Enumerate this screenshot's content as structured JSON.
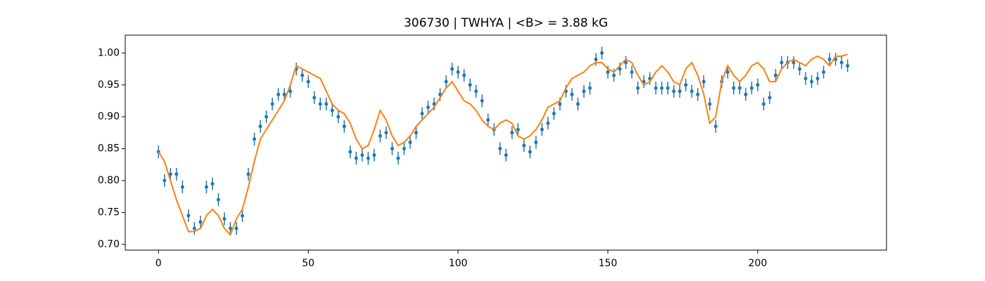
{
  "chart_data": {
    "type": "errorbar",
    "title": "306730 | TWHYA | <B> = 3.88 kG",
    "x": [
      0,
      2,
      4,
      6,
      8,
      10,
      12,
      14,
      16,
      18,
      20,
      22,
      24,
      26,
      28,
      30,
      32,
      34,
      36,
      38,
      40,
      42,
      44,
      46,
      48,
      50,
      52,
      54,
      56,
      58,
      60,
      62,
      64,
      66,
      68,
      70,
      72,
      74,
      76,
      78,
      80,
      82,
      84,
      86,
      88,
      90,
      92,
      94,
      96,
      98,
      100,
      102,
      104,
      106,
      108,
      110,
      112,
      114,
      116,
      118,
      120,
      122,
      124,
      126,
      128,
      130,
      132,
      134,
      136,
      138,
      140,
      142,
      144,
      146,
      148,
      150,
      152,
      154,
      156,
      158,
      160,
      162,
      164,
      166,
      168,
      170,
      172,
      174,
      176,
      178,
      180,
      182,
      184,
      186,
      188,
      190,
      192,
      194,
      196,
      198,
      200,
      202,
      204,
      206,
      208,
      210,
      212,
      214,
      216,
      218,
      220,
      222,
      224,
      226,
      228,
      230
    ],
    "series": [
      {
        "color": "#1f77b4",
        "yerr": 0.01,
        "values": [
          0.845,
          0.8,
          0.81,
          0.81,
          0.79,
          0.745,
          0.725,
          0.735,
          0.79,
          0.795,
          0.77,
          0.74,
          0.725,
          0.725,
          0.745,
          0.81,
          0.865,
          0.885,
          0.9,
          0.92,
          0.935,
          0.935,
          0.94,
          0.975,
          0.965,
          0.955,
          0.93,
          0.92,
          0.92,
          0.91,
          0.9,
          0.885,
          0.845,
          0.835,
          0.84,
          0.835,
          0.84,
          0.87,
          0.875,
          0.85,
          0.835,
          0.85,
          0.86,
          0.875,
          0.905,
          0.915,
          0.92,
          0.935,
          0.955,
          0.975,
          0.97,
          0.965,
          0.95,
          0.94,
          0.925,
          0.895,
          0.88,
          0.85,
          0.84,
          0.875,
          0.88,
          0.855,
          0.845,
          0.86,
          0.88,
          0.89,
          0.905,
          0.92,
          0.94,
          0.935,
          0.92,
          0.94,
          0.945,
          0.99,
          1.0,
          0.97,
          0.965,
          0.975,
          0.985,
          0.97,
          0.945,
          0.955,
          0.96,
          0.945,
          0.945,
          0.945,
          0.94,
          0.94,
          0.95,
          0.94,
          0.935,
          0.955,
          0.92,
          0.885,
          0.955,
          0.97,
          0.945,
          0.945,
          0.935,
          0.945,
          0.95,
          0.92,
          0.93,
          0.965,
          0.985,
          0.985,
          0.985,
          0.975,
          0.96,
          0.955,
          0.96,
          0.97,
          0.99,
          0.99,
          0.985,
          0.98
        ]
      },
      {
        "color": "#ff7f0e",
        "values": [
          0.845,
          0.83,
          0.8,
          0.77,
          0.745,
          0.72,
          0.72,
          0.725,
          0.745,
          0.755,
          0.745,
          0.725,
          0.715,
          0.74,
          0.755,
          0.79,
          0.83,
          0.865,
          0.88,
          0.895,
          0.91,
          0.925,
          0.95,
          0.98,
          0.975,
          0.97,
          0.965,
          0.96,
          0.94,
          0.92,
          0.91,
          0.905,
          0.89,
          0.865,
          0.85,
          0.855,
          0.88,
          0.91,
          0.895,
          0.87,
          0.855,
          0.86,
          0.87,
          0.885,
          0.895,
          0.905,
          0.915,
          0.93,
          0.945,
          0.955,
          0.94,
          0.925,
          0.92,
          0.91,
          0.895,
          0.885,
          0.88,
          0.89,
          0.895,
          0.89,
          0.87,
          0.865,
          0.87,
          0.88,
          0.895,
          0.915,
          0.92,
          0.925,
          0.945,
          0.96,
          0.965,
          0.97,
          0.98,
          0.985,
          0.985,
          0.975,
          0.97,
          0.98,
          0.99,
          0.985,
          0.965,
          0.95,
          0.955,
          0.97,
          0.98,
          0.97,
          0.955,
          0.95,
          0.975,
          0.985,
          0.965,
          0.935,
          0.89,
          0.9,
          0.955,
          0.98,
          0.965,
          0.955,
          0.965,
          0.98,
          0.985,
          0.975,
          0.955,
          0.955,
          0.975,
          0.985,
          0.99,
          0.985,
          0.98,
          0.99,
          0.995,
          0.99,
          0.98,
          0.995,
          0.995,
          0.998
        ]
      }
    ],
    "xlim": [
      -11.1,
      243
    ],
    "ylim": [
      0.691,
      1.028
    ],
    "xticks": [
      0,
      50,
      100,
      150,
      200
    ],
    "yticks": [
      {
        "value": 0.7,
        "label": "0.70"
      },
      {
        "value": 0.75,
        "label": "0.75"
      },
      {
        "value": 0.8,
        "label": "0.80"
      },
      {
        "value": 0.85,
        "label": "0.85"
      },
      {
        "value": 0.9,
        "label": "0.90"
      },
      {
        "value": 0.95,
        "label": "0.95"
      },
      {
        "value": 1.0,
        "label": "1.00"
      }
    ]
  }
}
